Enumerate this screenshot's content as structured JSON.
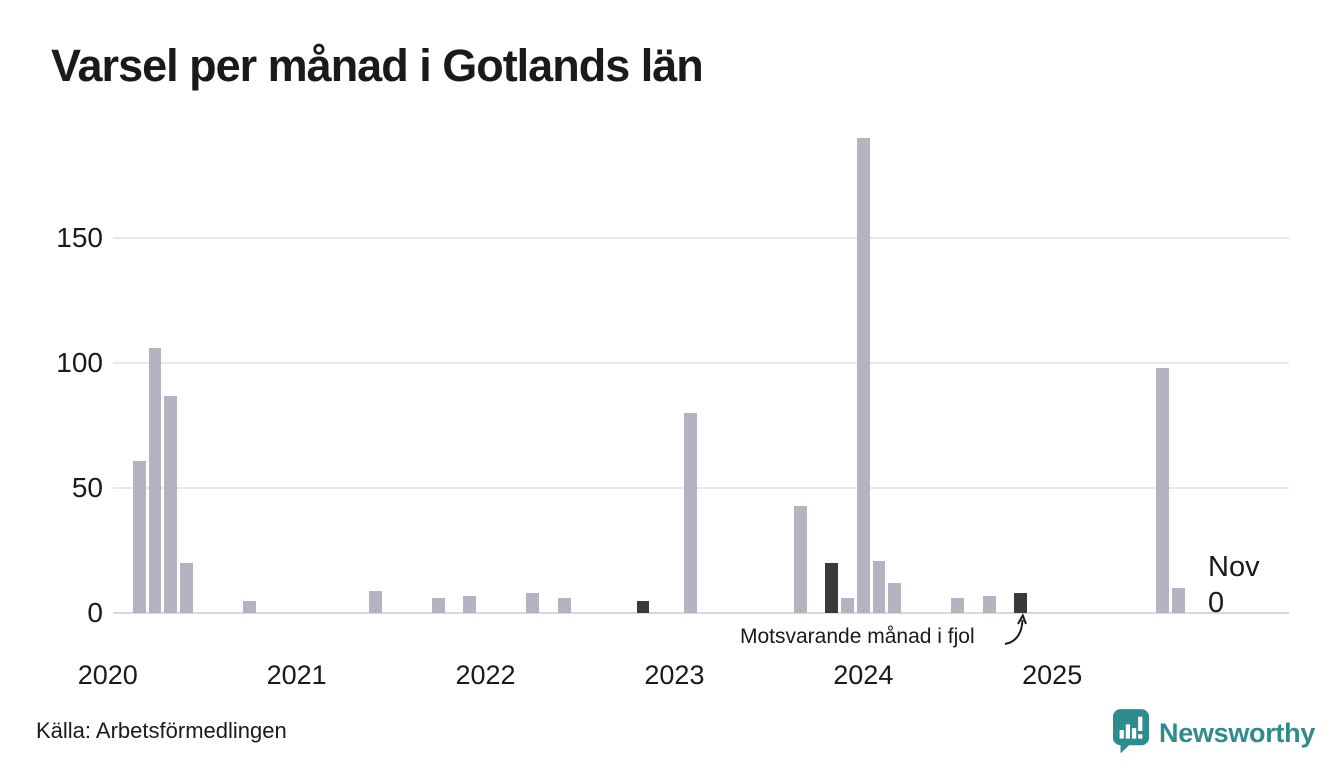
{
  "title": "Varsel per månad i Gotlands län",
  "source_note": "Källa: Arbetsförmedlingen",
  "brand": {
    "name": "Newsworthy",
    "color": "#2E8C8D"
  },
  "annotation": {
    "text": "Motsvarande månad i fjol"
  },
  "latest_month_label": {
    "month": "Nov",
    "value": "0"
  },
  "colors": {
    "background": "#FFFFFF",
    "bar": "#B5B2C1",
    "bar_highlight": "#3A3A3A",
    "gridline": "#E8E8E8",
    "baseline": "#D9D9D9",
    "text": "#1A1A1A"
  },
  "chart_data": {
    "type": "bar",
    "title": "Varsel per månad i Gotlands län",
    "xlabel": "",
    "ylabel": "",
    "x_tick_labels": [
      "2020",
      "2021",
      "2022",
      "2023",
      "2024",
      "2025"
    ],
    "y_ticks": [
      0,
      50,
      100,
      150
    ],
    "ylim": [
      0,
      195
    ],
    "grid": true,
    "legend_position": "none",
    "x_unit": "month",
    "months_without_bars_are_zero": true,
    "highlight_meaning": "Motsvarande månad i fjol",
    "latest_month": {
      "month": "2025-11",
      "value": 0,
      "label": "Nov 0"
    },
    "series": [
      {
        "name": "varsel",
        "points": [
          {
            "month": "2020-03",
            "value": 61
          },
          {
            "month": "2020-04",
            "value": 106
          },
          {
            "month": "2020-05",
            "value": 87
          },
          {
            "month": "2020-06",
            "value": 20
          },
          {
            "month": "2020-10",
            "value": 5
          },
          {
            "month": "2021-06",
            "value": 9
          },
          {
            "month": "2021-10",
            "value": 6
          },
          {
            "month": "2021-12",
            "value": 7
          },
          {
            "month": "2022-04",
            "value": 8
          },
          {
            "month": "2022-06",
            "value": 6
          },
          {
            "month": "2022-11",
            "value": 5,
            "highlight": true
          },
          {
            "month": "2023-02",
            "value": 80
          },
          {
            "month": "2023-09",
            "value": 43
          },
          {
            "month": "2023-11",
            "value": 20,
            "highlight": true
          },
          {
            "month": "2023-12",
            "value": 6
          },
          {
            "month": "2024-01",
            "value": 190
          },
          {
            "month": "2024-02",
            "value": 21
          },
          {
            "month": "2024-03",
            "value": 12
          },
          {
            "month": "2024-07",
            "value": 6
          },
          {
            "month": "2024-09",
            "value": 7
          },
          {
            "month": "2024-11",
            "value": 8,
            "highlight": true
          },
          {
            "month": "2025-08",
            "value": 98
          },
          {
            "month": "2025-09",
            "value": 10
          },
          {
            "month": "2025-11",
            "value": 0
          }
        ]
      }
    ]
  }
}
